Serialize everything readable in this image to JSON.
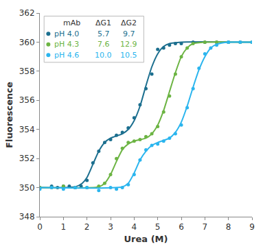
{
  "chart_data": {
    "type": "scatter",
    "x_label": "Urea (M)",
    "y_label": "Fluorescence",
    "xlim": [
      0,
      9
    ],
    "xticks": [
      0,
      1,
      2,
      3,
      4,
      5,
      6,
      7,
      8,
      9
    ],
    "ylim": [
      348,
      362
    ],
    "yticks": [
      348,
      350,
      352,
      354,
      356,
      358,
      360,
      362
    ],
    "grid": false,
    "legend": "upper left",
    "marker": "circle",
    "line_style": "solid",
    "table_header": [
      "mAb",
      "ΔG1",
      "ΔG2"
    ],
    "series": [
      {
        "name": "pH 4.0",
        "color": "#1c6f8f",
        "dG1": 5.7,
        "dG2": 9.7,
        "x": [
          0,
          0.5,
          0.75,
          1,
          1.25,
          1.5,
          1.75,
          2,
          2.25,
          2.5,
          2.75,
          3,
          3.25,
          3.5,
          3.75,
          4,
          4.25,
          4.5,
          4.75,
          5,
          5.25,
          5.5,
          5.75,
          6,
          6.5,
          7,
          7.5,
          8,
          8.5,
          9
        ],
        "values": [
          350,
          350.1,
          350,
          350.1,
          350.1,
          350,
          350.1,
          350.5,
          351.7,
          352.5,
          353.1,
          353.3,
          353.6,
          353.8,
          354.1,
          354.8,
          355.7,
          356.8,
          357.8,
          359.5,
          359.6,
          359.8,
          359.9,
          359.9,
          360,
          360,
          360,
          360,
          360,
          360
        ],
        "fit_x": [
          0,
          1,
          1.5,
          1.8,
          2,
          2.25,
          2.5,
          2.75,
          3,
          3.5,
          3.75,
          4,
          4.25,
          4.5,
          4.75,
          5,
          5.25,
          5.5,
          6,
          9
        ],
        "fit_values": [
          350,
          350,
          350.05,
          350.3,
          350.7,
          351.6,
          352.5,
          353.1,
          353.4,
          353.7,
          354,
          354.6,
          355.6,
          357,
          358.3,
          359.2,
          359.7,
          359.9,
          360,
          360
        ]
      },
      {
        "name": "pH 4.3",
        "color": "#6cb443",
        "dG1": 7.6,
        "dG2": 12.9,
        "x": [
          0,
          0.5,
          1,
          1.5,
          2,
          2.5,
          2.75,
          3,
          3.25,
          3.5,
          3.75,
          4,
          4.25,
          4.5,
          4.75,
          5,
          5.25,
          5.5,
          5.75,
          6,
          6.25,
          6.5,
          7,
          7.5,
          8,
          8.5,
          9
        ],
        "values": [
          350,
          350,
          350.1,
          350,
          350,
          350.1,
          350.3,
          350.9,
          352,
          352.7,
          353.1,
          353.2,
          353.3,
          353.5,
          353.7,
          354.2,
          355.2,
          356.3,
          357.8,
          359,
          359.6,
          359.9,
          360,
          360,
          360,
          360,
          360
        ],
        "fit_x": [
          0,
          2.5,
          2.75,
          3,
          3.25,
          3.5,
          3.75,
          4,
          4.5,
          4.75,
          5,
          5.25,
          5.5,
          5.75,
          6,
          6.25,
          6.5,
          7,
          9
        ],
        "fit_values": [
          350,
          350.05,
          350.3,
          350.9,
          351.8,
          352.6,
          353,
          353.2,
          353.4,
          353.7,
          354.3,
          355.3,
          356.6,
          357.9,
          359,
          359.6,
          359.9,
          360,
          360
        ]
      },
      {
        "name": "pH 4.6",
        "color": "#2bb5ee",
        "dG1": 10.0,
        "dG2": 10.5,
        "x": [
          0,
          0.5,
          1,
          1.5,
          2,
          2.5,
          3,
          3.25,
          3.5,
          3.75,
          4,
          4.25,
          4.5,
          4.75,
          5,
          5.25,
          5.5,
          5.75,
          6,
          6.25,
          6.5,
          6.75,
          7,
          7.25,
          7.5,
          8,
          8.5,
          9
        ],
        "values": [
          349.9,
          350,
          349.9,
          350,
          350,
          349.8,
          350,
          349.9,
          350,
          350.2,
          350.9,
          351.9,
          352.6,
          352.9,
          353,
          353.2,
          353.4,
          353.7,
          354.3,
          355.5,
          356.8,
          358.2,
          359.2,
          359.6,
          359.8,
          360,
          360,
          360
        ],
        "fit_x": [
          0,
          3.5,
          3.75,
          4,
          4.25,
          4.5,
          4.75,
          5,
          5.5,
          5.75,
          6,
          6.25,
          6.5,
          6.75,
          7,
          7.25,
          7.5,
          8,
          9
        ],
        "fit_values": [
          350,
          350.05,
          350.3,
          351,
          351.9,
          352.5,
          352.9,
          353.1,
          353.4,
          353.8,
          354.5,
          355.6,
          356.9,
          358.1,
          359,
          359.6,
          359.85,
          360,
          360
        ]
      }
    ]
  }
}
